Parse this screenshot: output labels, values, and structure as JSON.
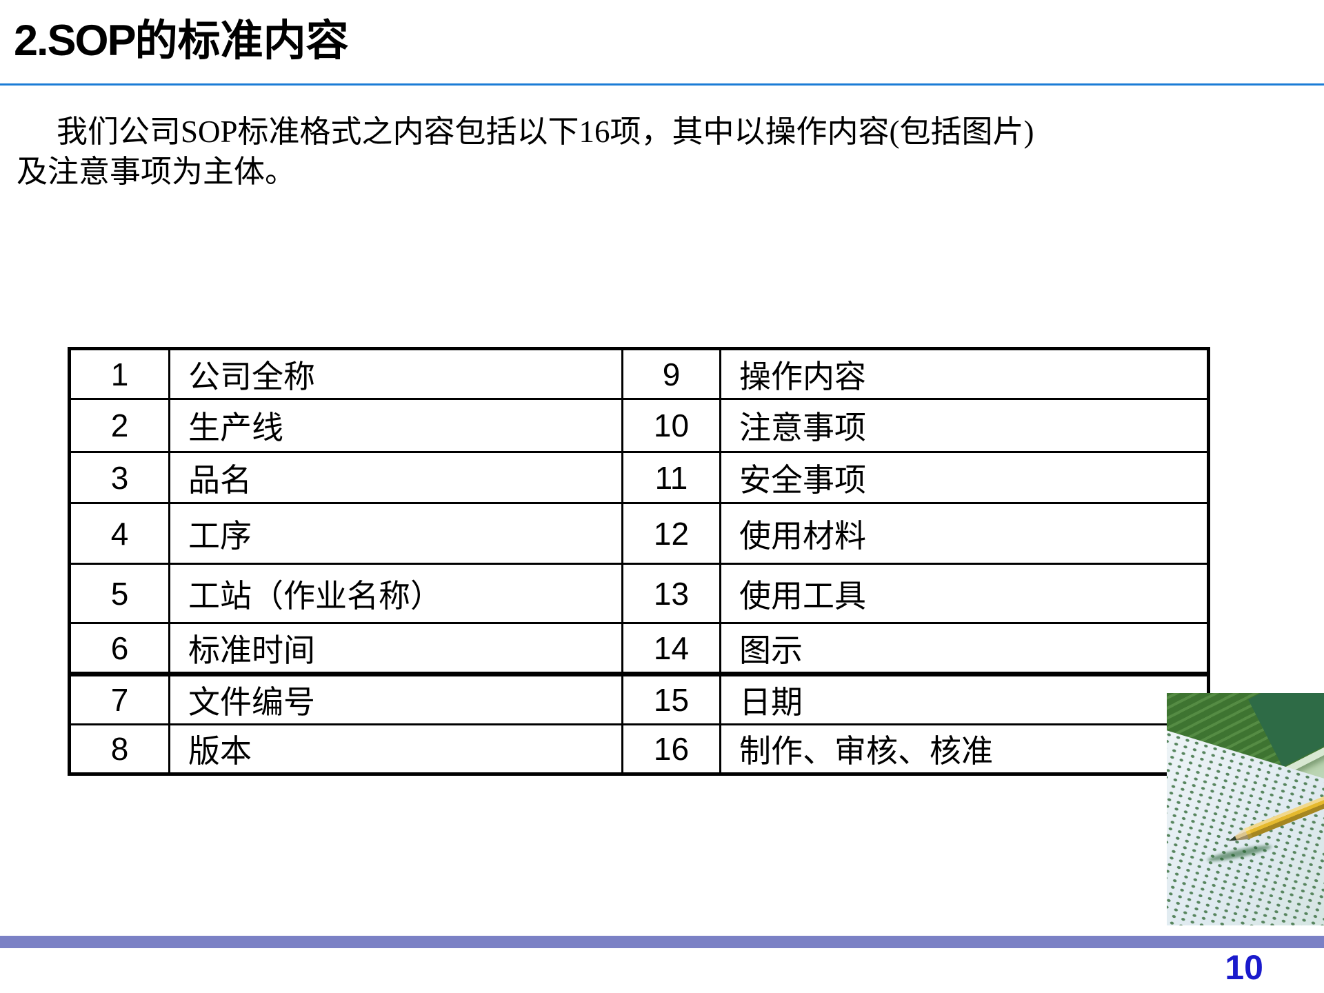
{
  "slide": {
    "title": {
      "prefix": "2.SOP",
      "suffix": "的标准内容"
    },
    "intro": {
      "line1": "我们公司SOP标准格式之内容包括以下16项，其中以操作内容(包括图片)",
      "line2": "及注意事项为主体。"
    },
    "page_number": "10"
  },
  "table": {
    "rows": [
      {
        "no_left": "1",
        "label_left": "公司全称",
        "no_right": "9",
        "label_right": "操作内容"
      },
      {
        "no_left": "2",
        "label_left": "生产线",
        "no_right": "10",
        "label_right": "注意事项"
      },
      {
        "no_left": "3",
        "label_left": "品名",
        "no_right": "11",
        "label_right": "安全事项"
      },
      {
        "no_left": "4",
        "label_left": "工序",
        "no_right": "12",
        "label_right": "使用材料"
      },
      {
        "no_left": "5",
        "label_left": "工站（作业名称）",
        "no_right": "13",
        "label_right": "使用工具"
      },
      {
        "no_left": "6",
        "label_left": "标准时间",
        "no_right": "14",
        "label_right": "图示"
      },
      {
        "no_left": "7",
        "label_left": "文件编号",
        "no_right": "15",
        "label_right": "日期"
      },
      {
        "no_left": "8",
        "label_left": "版本",
        "no_right": "16",
        "label_right": "制作、审核、核准"
      }
    ]
  },
  "decor": {
    "photo_icon": "answer-sheet-pencil-photo",
    "colors": {
      "title_rule": "#1B7CD6",
      "footer_bar": "#7B81C5",
      "page_number": "#1A1ACC",
      "table_border": "#000000",
      "photo_green": "#4A8038",
      "pencil_yellow": "#E5B92E"
    }
  }
}
